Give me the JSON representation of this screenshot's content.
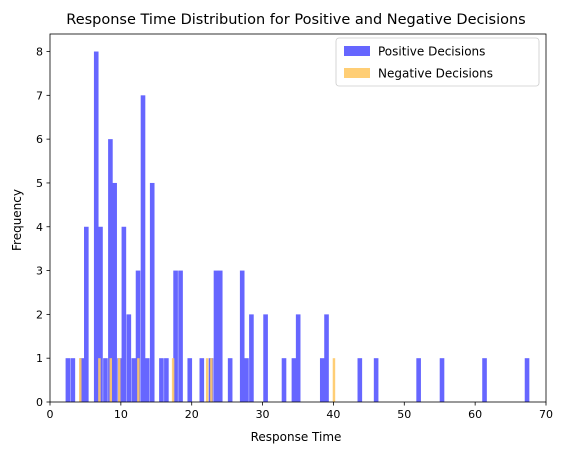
{
  "chart_data": {
    "type": "bar",
    "title": "Response Time Distribution for Positive and Negative Decisions",
    "xlabel": "Response Time",
    "ylabel": "Frequency",
    "xlim": [
      0,
      70
    ],
    "ylim": [
      0,
      8.4
    ],
    "xticks": [
      0,
      10,
      20,
      30,
      40,
      50,
      60,
      70
    ],
    "yticks": [
      0,
      1,
      2,
      3,
      4,
      5,
      6,
      7,
      8
    ],
    "grid": false,
    "legend_position": "top-right",
    "series": [
      {
        "name": "Positive Decisions",
        "color": "#6666ff",
        "bin_width": 0.65,
        "bins": [
          {
            "x": 2.2,
            "y": 1
          },
          {
            "x": 2.9,
            "y": 1
          },
          {
            "x": 4.2,
            "y": 1
          },
          {
            "x": 4.8,
            "y": 4
          },
          {
            "x": 6.2,
            "y": 8
          },
          {
            "x": 6.8,
            "y": 4
          },
          {
            "x": 7.5,
            "y": 1
          },
          {
            "x": 8.2,
            "y": 6
          },
          {
            "x": 8.8,
            "y": 5
          },
          {
            "x": 9.5,
            "y": 1
          },
          {
            "x": 10.1,
            "y": 4
          },
          {
            "x": 10.8,
            "y": 2
          },
          {
            "x": 11.5,
            "y": 1
          },
          {
            "x": 12.1,
            "y": 3
          },
          {
            "x": 12.8,
            "y": 7
          },
          {
            "x": 13.4,
            "y": 1
          },
          {
            "x": 14.1,
            "y": 5
          },
          {
            "x": 15.4,
            "y": 1
          },
          {
            "x": 16.1,
            "y": 1
          },
          {
            "x": 17.4,
            "y": 3
          },
          {
            "x": 18.1,
            "y": 3
          },
          {
            "x": 19.4,
            "y": 1
          },
          {
            "x": 21.1,
            "y": 1
          },
          {
            "x": 22.4,
            "y": 1
          },
          {
            "x": 23.1,
            "y": 3
          },
          {
            "x": 23.7,
            "y": 3
          },
          {
            "x": 25.1,
            "y": 1
          },
          {
            "x": 26.8,
            "y": 3
          },
          {
            "x": 27.4,
            "y": 1
          },
          {
            "x": 28.1,
            "y": 2
          },
          {
            "x": 30.1,
            "y": 2
          },
          {
            "x": 32.7,
            "y": 1
          },
          {
            "x": 34.1,
            "y": 1
          },
          {
            "x": 34.7,
            "y": 2
          },
          {
            "x": 38.1,
            "y": 1
          },
          {
            "x": 38.7,
            "y": 2
          },
          {
            "x": 43.4,
            "y": 1
          },
          {
            "x": 45.7,
            "y": 1
          },
          {
            "x": 51.7,
            "y": 1
          },
          {
            "x": 55.0,
            "y": 1
          },
          {
            "x": 61.0,
            "y": 1
          },
          {
            "x": 67.0,
            "y": 1
          }
        ]
      },
      {
        "name": "Negative Decisions",
        "color": "#ffc966",
        "bin_width": 0.35,
        "bins": [
          {
            "x": 4.1,
            "y": 1
          },
          {
            "x": 6.8,
            "y": 1
          },
          {
            "x": 8.4,
            "y": 1
          },
          {
            "x": 9.6,
            "y": 1
          },
          {
            "x": 12.3,
            "y": 1
          },
          {
            "x": 17.2,
            "y": 1
          },
          {
            "x": 22.0,
            "y": 1
          },
          {
            "x": 22.6,
            "y": 1
          },
          {
            "x": 39.9,
            "y": 1
          }
        ]
      }
    ]
  }
}
